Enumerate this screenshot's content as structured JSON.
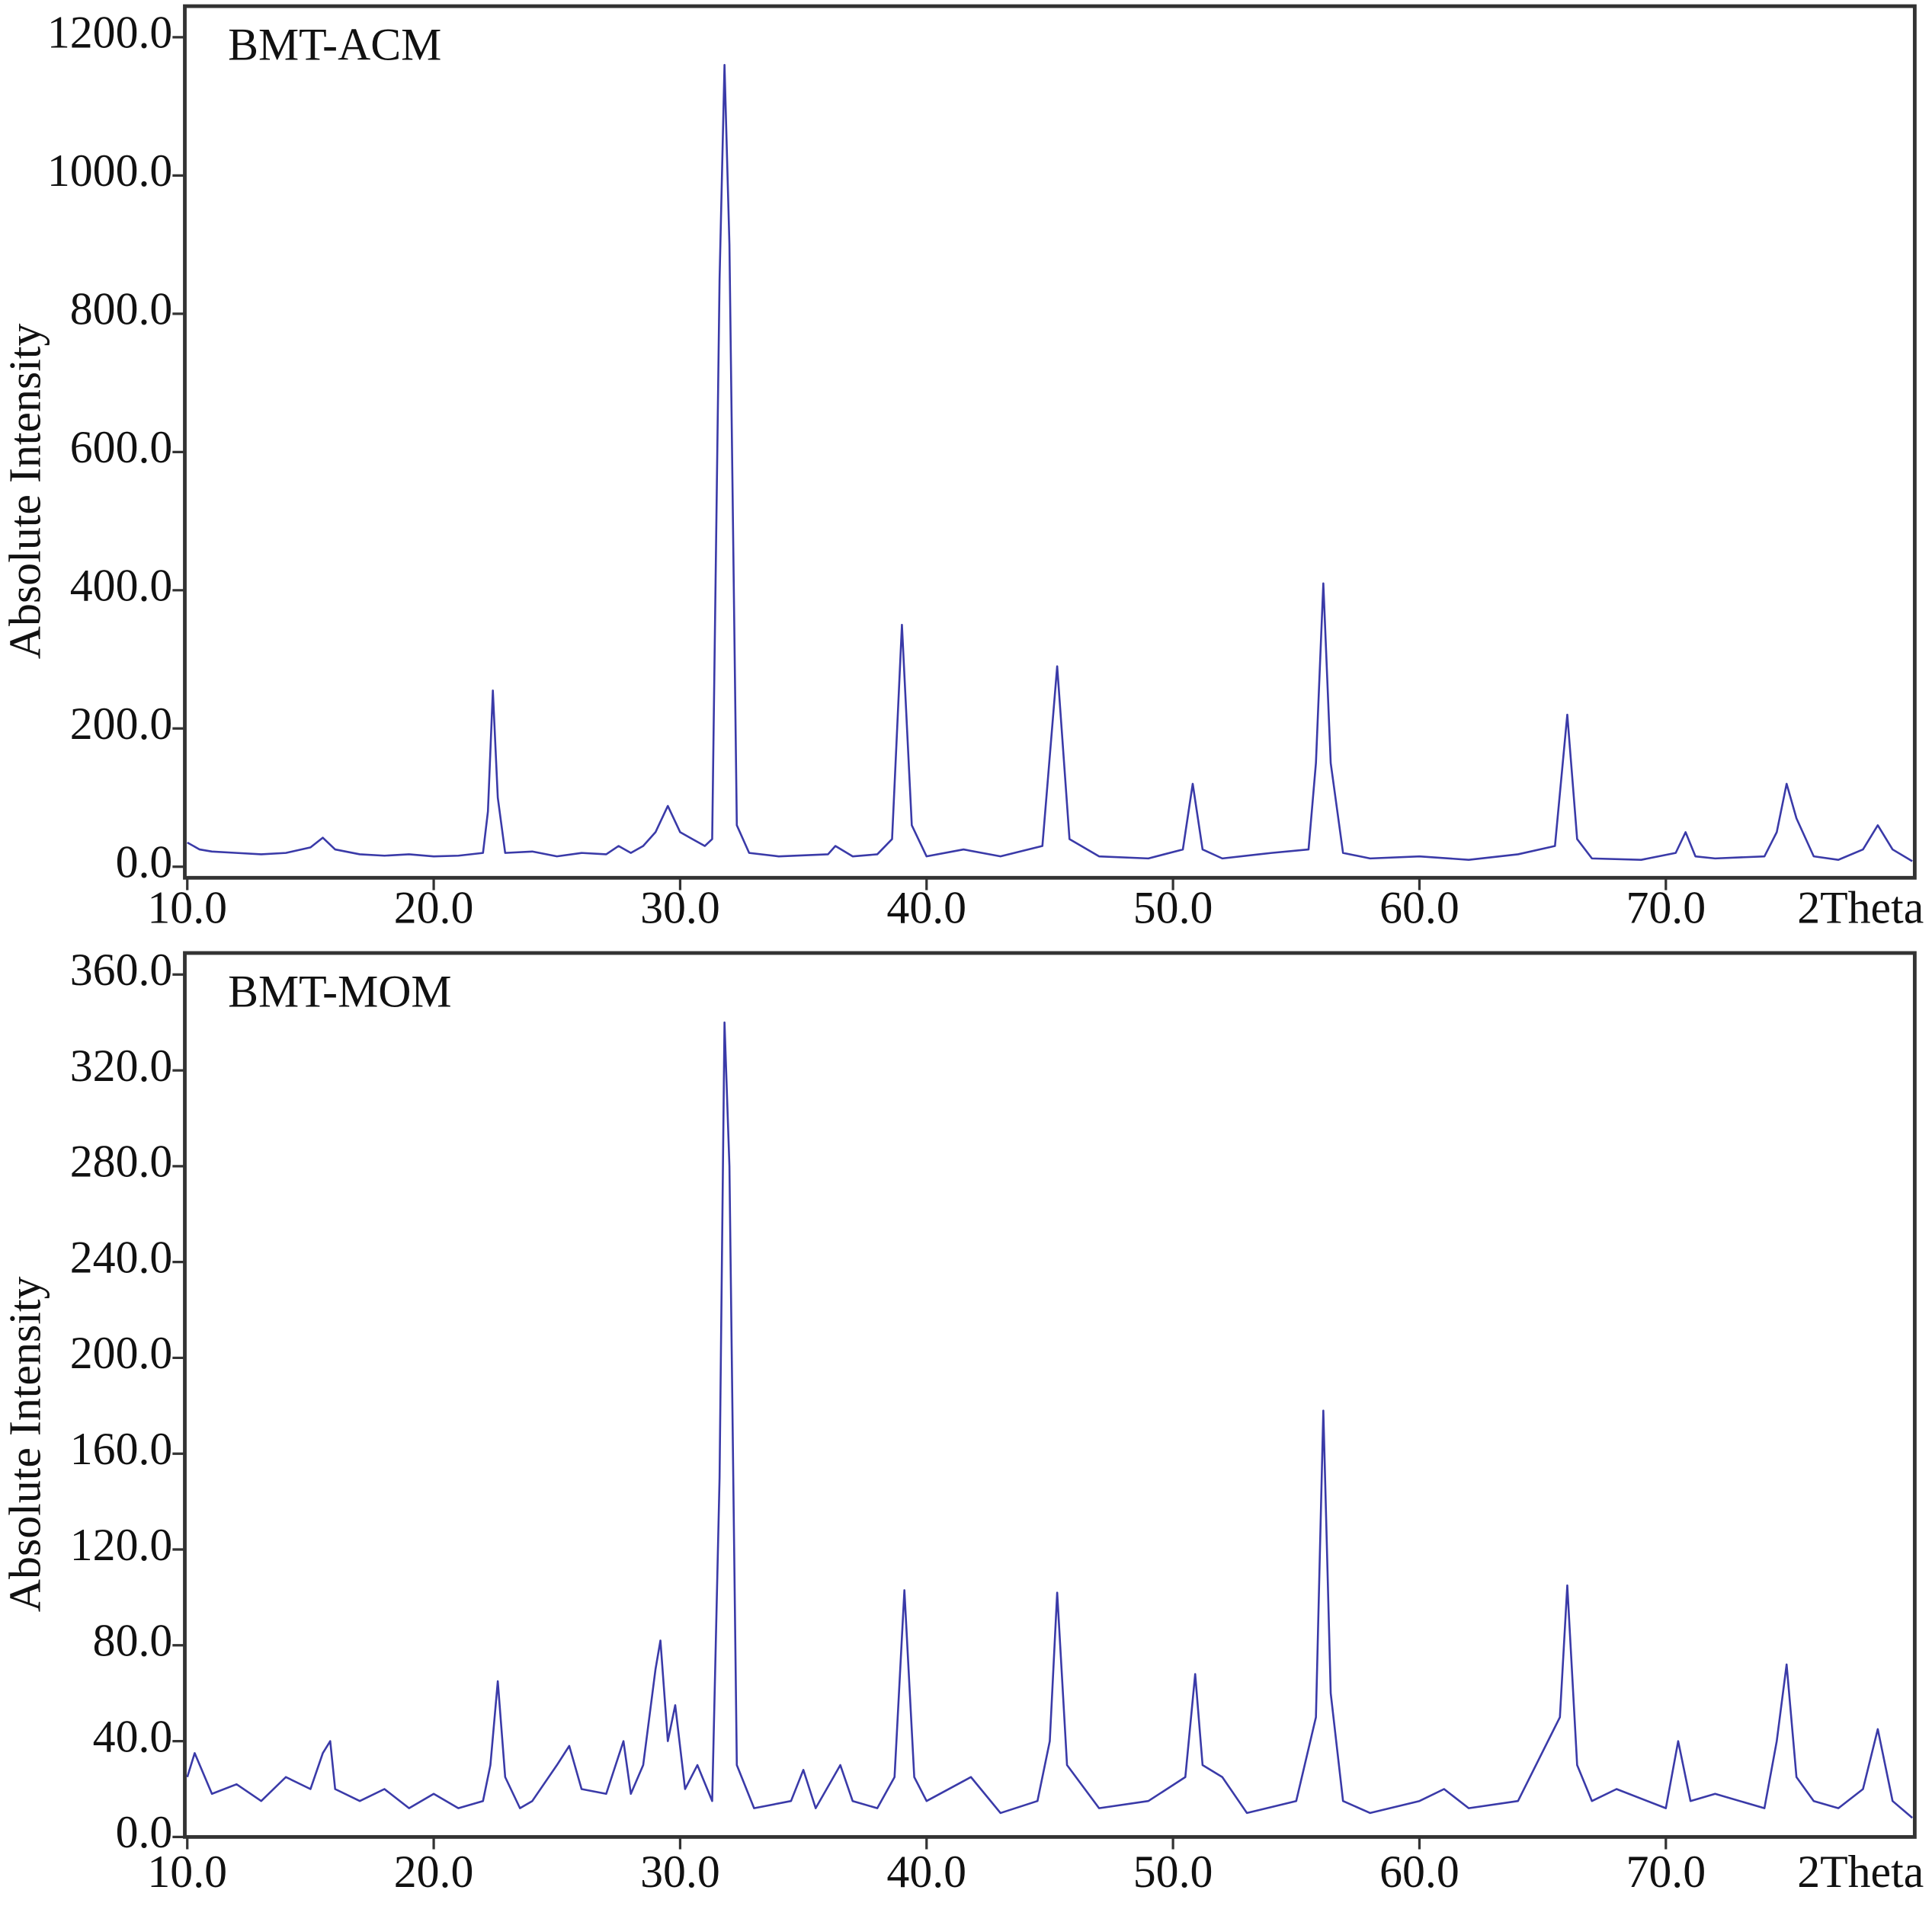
{
  "chart_data": [
    {
      "type": "line",
      "title": "BMT-ACM",
      "y_label": "Absolute Intensity",
      "x_label": "2Theta",
      "x": [
        10,
        10.5,
        11,
        12,
        13,
        14,
        15,
        15.5,
        16,
        17,
        18,
        19,
        20,
        21,
        22,
        22.2,
        22.4,
        22.6,
        22.9,
        24,
        25,
        26,
        27,
        27.5,
        28,
        28.5,
        29,
        29.5,
        30,
        30.5,
        31,
        31.3,
        31.6,
        31.8,
        32,
        32.3,
        32.8,
        34,
        36,
        36.3,
        37,
        38,
        38.6,
        39.0,
        39.4,
        40,
        41.5,
        43,
        44.7,
        45.3,
        45.8,
        47,
        49,
        50.4,
        50.8,
        51.2,
        52,
        54,
        55.5,
        55.8,
        56.1,
        56.4,
        56.9,
        58,
        60,
        62,
        64,
        65.5,
        66.0,
        66.4,
        67,
        69,
        70.4,
        70.8,
        71.2,
        72,
        74,
        74.5,
        74.9,
        75.3,
        76,
        77,
        78,
        78.6,
        79.2,
        80
      ],
      "series": [
        {
          "color": "#3a3aa8",
          "values": [
            35,
            25,
            22,
            20,
            18,
            20,
            28,
            42,
            25,
            18,
            16,
            18,
            15,
            16,
            20,
            80,
            255,
            100,
            20,
            22,
            15,
            20,
            18,
            30,
            20,
            30,
            50,
            88,
            50,
            40,
            30,
            40,
            850,
            1160,
            900,
            60,
            20,
            15,
            18,
            30,
            15,
            18,
            40,
            350,
            60,
            15,
            25,
            15,
            30,
            290,
            40,
            15,
            12,
            25,
            120,
            25,
            12,
            20,
            25,
            150,
            410,
            150,
            20,
            12,
            15,
            10,
            18,
            30,
            220,
            40,
            12,
            10,
            20,
            50,
            15,
            12,
            15,
            50,
            120,
            70,
            15,
            10,
            25,
            60,
            25,
            8
          ]
        }
      ],
      "xlim": [
        10,
        80
      ],
      "xticks": [
        {
          "value": 10,
          "label": "10.0"
        },
        {
          "value": 20,
          "label": "20.0"
        },
        {
          "value": 30,
          "label": "30.0"
        },
        {
          "value": 40,
          "label": "40.0"
        },
        {
          "value": 50,
          "label": "50.0"
        },
        {
          "value": 60,
          "label": "60.0"
        },
        {
          "value": 70,
          "label": "70.0"
        }
      ],
      "ylim": [
        -16,
        1245
      ],
      "yticks": [
        {
          "value": 0,
          "label": "0.0"
        },
        {
          "value": 200,
          "label": "200.0"
        },
        {
          "value": 400,
          "label": "400.0"
        },
        {
          "value": 600,
          "label": "600.0"
        },
        {
          "value": 800,
          "label": "800.0"
        },
        {
          "value": 1000,
          "label": "1000.0"
        },
        {
          "value": 1200,
          "label": "1200.0"
        }
      ]
    },
    {
      "type": "line",
      "title": "BMT-MOM",
      "y_label": "Absolute Intensity",
      "x_label": "2Theta",
      "x": [
        10,
        10.3,
        11,
        12,
        13,
        14,
        15,
        15.5,
        15.8,
        16,
        17,
        18,
        19,
        20,
        21,
        22,
        22.3,
        22.6,
        22.9,
        23.5,
        24,
        25,
        25.5,
        26,
        27,
        27.7,
        28,
        28.5,
        29,
        29.2,
        29.5,
        29.8,
        30.2,
        30.7,
        31.3,
        31.6,
        31.8,
        32,
        32.3,
        33,
        34.5,
        35,
        35.5,
        36.5,
        37,
        38,
        38.7,
        39.1,
        39.5,
        40,
        41.8,
        43,
        44.5,
        45.0,
        45.3,
        45.7,
        47,
        49,
        50.5,
        50.9,
        51.2,
        52,
        53,
        55,
        55.8,
        56.1,
        56.4,
        56.9,
        58,
        60,
        61,
        62,
        64,
        65.7,
        66.0,
        66.4,
        67,
        68,
        70,
        70.5,
        71,
        72,
        74,
        74.5,
        74.9,
        75.3,
        76,
        77,
        78,
        78.6,
        79.2,
        80
      ],
      "series": [
        {
          "color": "#3a3aa8",
          "values": [
            25,
            35,
            18,
            22,
            15,
            25,
            20,
            35,
            40,
            20,
            15,
            20,
            12,
            18,
            12,
            15,
            30,
            65,
            25,
            12,
            15,
            30,
            38,
            20,
            18,
            40,
            18,
            30,
            70,
            82,
            40,
            55,
            20,
            30,
            15,
            150,
            340,
            280,
            30,
            12,
            15,
            28,
            12,
            30,
            15,
            12,
            25,
            103,
            25,
            15,
            25,
            10,
            15,
            40,
            102,
            30,
            12,
            15,
            25,
            68,
            30,
            25,
            10,
            15,
            50,
            178,
            60,
            15,
            10,
            15,
            20,
            12,
            15,
            50,
            105,
            30,
            15,
            20,
            12,
            40,
            15,
            18,
            12,
            40,
            72,
            25,
            15,
            12,
            20,
            45,
            15,
            8
          ]
        }
      ],
      "xlim": [
        10,
        80
      ],
      "xticks": [
        {
          "value": 10,
          "label": "10.0"
        },
        {
          "value": 20,
          "label": "20.0"
        },
        {
          "value": 30,
          "label": "30.0"
        },
        {
          "value": 40,
          "label": "40.0"
        },
        {
          "value": 50,
          "label": "50.0"
        },
        {
          "value": 60,
          "label": "60.0"
        },
        {
          "value": 70,
          "label": "70.0"
        }
      ],
      "ylim": [
        0,
        369
      ],
      "yticks": [
        {
          "value": 0,
          "label": "0.0"
        },
        {
          "value": 40,
          "label": "40.0"
        },
        {
          "value": 80,
          "label": "80.0"
        },
        {
          "value": 120,
          "label": "120.0"
        },
        {
          "value": 160,
          "label": "160.0"
        },
        {
          "value": 200,
          "label": "200.0"
        },
        {
          "value": 240,
          "label": "240.0"
        },
        {
          "value": 280,
          "label": "280.0"
        },
        {
          "value": 320,
          "label": "320.0"
        },
        {
          "value": 360,
          "label": "360.0"
        }
      ]
    }
  ]
}
